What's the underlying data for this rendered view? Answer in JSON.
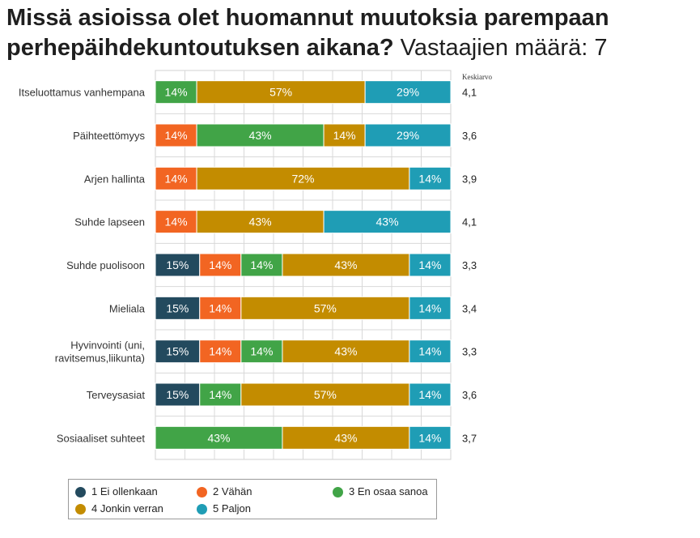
{
  "header": {
    "title": "Missä asioissa olet huomannut muutoksia parempaan perhepäihdekuntoutuksen aikana?",
    "respondents": "Vastaajien määrä: 7"
  },
  "chart_data": {
    "type": "bar",
    "orientation": "horizontal",
    "stacked": true,
    "normalized_percent": true,
    "mean_header": "Keskiarvo",
    "grid": true,
    "legend_position": "bottom",
    "categories": [
      "Itseluottamus vanhempana",
      "Päihteettömyys",
      "Arjen hallinta",
      "Suhde lapseen",
      "Suhde puolisoon",
      "Mieliala",
      "Hyvinvointi (uni, ravitsemus,liikunta)",
      "Terveysasiat",
      "Sosiaaliset suhteet"
    ],
    "series": [
      {
        "name": "1 Ei ollenkaan",
        "color": "#234a5e",
        "values": [
          0,
          0,
          0,
          0,
          15,
          15,
          15,
          15,
          0
        ]
      },
      {
        "name": "2 Vähän",
        "color": "#f26522",
        "values": [
          0,
          14,
          14,
          14,
          14,
          14,
          14,
          0,
          0
        ]
      },
      {
        "name": "3 En osaa sanoa",
        "color": "#41a447",
        "values": [
          14,
          43,
          0,
          0,
          14,
          0,
          14,
          14,
          43
        ]
      },
      {
        "name": "4 Jonkin verran",
        "color": "#c38c00",
        "values": [
          57,
          14,
          72,
          43,
          43,
          57,
          43,
          57,
          43
        ]
      },
      {
        "name": "5 Paljon",
        "color": "#1f9db5",
        "values": [
          29,
          29,
          14,
          43,
          14,
          14,
          14,
          14,
          14
        ]
      }
    ],
    "means": [
      "4,1",
      "3,6",
      "3,9",
      "4,1",
      "3,3",
      "3,4",
      "3,3",
      "3,6",
      "3,7"
    ]
  }
}
